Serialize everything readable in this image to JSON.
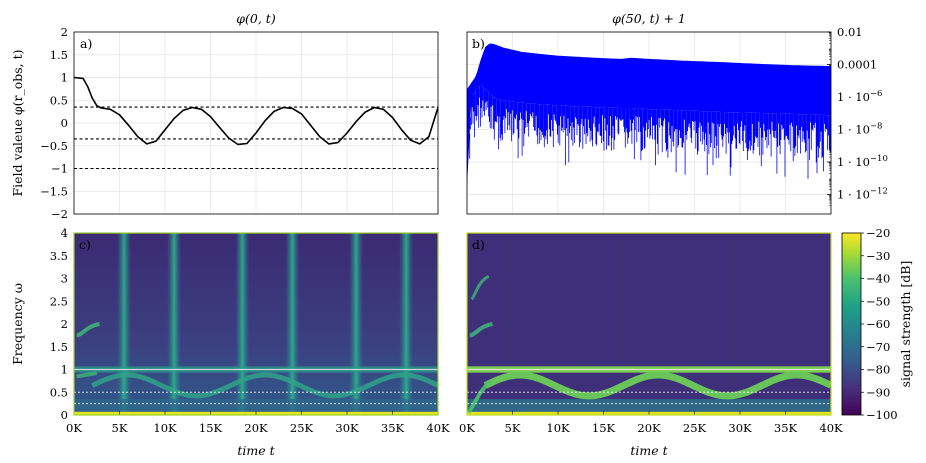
{
  "chart_data": [
    {
      "panel": "a)",
      "type": "line",
      "title": "φ(0, t)",
      "ylabel": "Field valeue φ(r_obs, t)",
      "xlim": [
        0,
        40000
      ],
      "ylim": [
        -2,
        2
      ],
      "yticks": [
        "2",
        "1.5",
        "1",
        "0.5",
        "0",
        "−0.5",
        "−1",
        "−1.5",
        "−2"
      ],
      "grid": true,
      "series": [
        {
          "color": "#000000",
          "x": [
            0,
            1000,
            1500,
            2000,
            2500,
            3000,
            4000,
            5000,
            6000,
            7000,
            8000,
            9000,
            10000,
            11000,
            12000,
            13000,
            14000,
            15000,
            16000,
            17000,
            18000,
            19000,
            20000,
            21000,
            22000,
            23000,
            24000,
            25000,
            26000,
            27000,
            28000,
            29000,
            30000,
            31000,
            32000,
            33000,
            34000,
            35000,
            36000,
            37000,
            38000,
            39000,
            40000
          ],
          "y": [
            1,
            0.98,
            0.8,
            0.55,
            0.38,
            0.33,
            0.3,
            0.18,
            -0.05,
            -0.3,
            -0.46,
            -0.4,
            -0.15,
            0.1,
            0.28,
            0.34,
            0.3,
            0.14,
            -0.1,
            -0.33,
            -0.47,
            -0.45,
            -0.22,
            0.05,
            0.26,
            0.34,
            0.32,
            0.2,
            -0.05,
            -0.3,
            -0.46,
            -0.43,
            -0.22,
            0.03,
            0.24,
            0.34,
            0.3,
            0.12,
            -0.15,
            -0.38,
            -0.46,
            -0.3,
            0.34
          ]
        }
      ],
      "hlines": [
        0.35,
        -0.35,
        -1
      ]
    },
    {
      "panel": "b)",
      "type": "line",
      "title": "φ(50, t) + 1",
      "scale": "log",
      "xlim": [
        0,
        40000
      ],
      "yticks": [
        "0.01",
        "0.0001",
        "1 · 10^−6",
        "1 · 10^−8",
        "1 · 10^−10",
        "1 · 10^−12"
      ],
      "grid": true,
      "series": [
        {
          "color": "#0000ff",
          "x": [
            0,
            500,
            1000,
            1500,
            2000,
            2500,
            3000,
            4000,
            6000,
            8000,
            10000,
            14000,
            17000,
            18000,
            20000,
            24000,
            28000,
            32000,
            36000,
            40000
          ],
          "upper": [
            3e-06,
            8e-06,
            2e-05,
            0.0002,
            0.0012,
            0.002,
            0.0018,
            0.0011,
            0.0006,
            0.00045,
            0.00035,
            0.00026,
            0.00022,
            0.00026,
            0.00022,
            0.00017,
            0.00014,
            0.00011,
            9e-05,
            8e-05
          ],
          "lower": [
            1e-12,
            3e-07,
            1e-06,
            2e-06,
            1e-06,
            6e-07,
            3e-07,
            2e-07,
            1.5e-07,
            1.2e-07,
            1e-07,
            8e-08,
            7e-08,
            7e-08,
            6e-08,
            5e-08,
            4e-08,
            3.5e-08,
            3e-08,
            2.5e-08
          ]
        }
      ]
    },
    {
      "panel": "c)",
      "type": "heatmap",
      "ylabel": "Frequency ω",
      "xlabel": "time t",
      "xlim": [
        0,
        40000
      ],
      "ylim": [
        0,
        4
      ],
      "xticks": [
        "0K",
        "5K",
        "10K",
        "15K",
        "20K",
        "25K",
        "30K",
        "35K",
        "40K"
      ],
      "yticks": [
        "4",
        "3.5",
        "3",
        "2.5",
        "2",
        "1.5",
        "1",
        "0.5",
        "0"
      ],
      "vertical_lines_t": [
        5500,
        11000,
        18500,
        24000,
        31000,
        36500
      ],
      "hlines": [
        1.0,
        0.5,
        0.25
      ]
    },
    {
      "panel": "d)",
      "type": "heatmap",
      "xlabel": "time t",
      "xlim": [
        0,
        40000
      ],
      "ylim": [
        0,
        4
      ],
      "xticks": [
        "0K",
        "5K",
        "10K",
        "15K",
        "20K",
        "25K",
        "30K",
        "35K",
        "40K"
      ],
      "hlines": [
        1.0,
        0.5,
        0.25
      ],
      "colorbar": {
        "label": "signal strength [dB]",
        "range": [
          -100,
          -20
        ],
        "ticks": [
          "−20",
          "−30",
          "−40",
          "−50",
          "−60",
          "−70",
          "−80",
          "−90",
          "−100"
        ]
      }
    }
  ]
}
